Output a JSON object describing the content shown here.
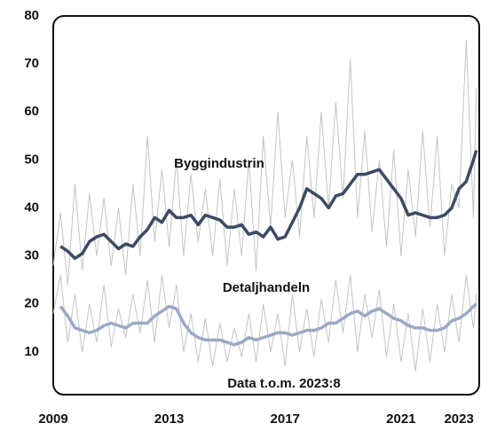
{
  "chart_data": {
    "type": "line",
    "annotation": "Data t.o.m. 2023:8",
    "x": [
      2009,
      2009.25,
      2009.5,
      2009.75,
      2010,
      2010.25,
      2010.5,
      2010.75,
      2011,
      2011.25,
      2011.5,
      2011.75,
      2012,
      2012.25,
      2012.5,
      2012.75,
      2013,
      2013.25,
      2013.5,
      2013.75,
      2014,
      2014.25,
      2014.5,
      2014.75,
      2015,
      2015.25,
      2015.5,
      2015.75,
      2016,
      2016.25,
      2016.5,
      2016.75,
      2017,
      2017.25,
      2017.5,
      2017.75,
      2018,
      2018.25,
      2018.5,
      2018.75,
      2019,
      2019.25,
      2019.5,
      2019.75,
      2020,
      2020.25,
      2020.5,
      2020.75,
      2021,
      2021.25,
      2021.5,
      2021.75,
      2022,
      2022.25,
      2022.5,
      2022.75,
      2023,
      2023.25,
      2023.5,
      2023.6
    ],
    "series": [
      {
        "color": "#c4c4c4",
        "values": [
          28,
          39,
          24,
          45,
          27,
          43,
          30,
          42,
          28,
          40,
          26,
          45,
          30,
          55,
          33,
          48,
          32,
          50,
          30,
          47,
          33,
          44,
          30,
          46,
          28,
          44,
          30,
          50,
          27,
          55,
          36,
          60,
          38,
          50,
          34,
          55,
          38,
          60,
          40,
          62,
          42,
          71,
          38,
          56,
          35,
          50,
          32,
          52,
          30,
          48,
          34,
          56,
          36,
          55,
          30,
          45,
          40,
          75,
          38,
          65
        ]
      },
      {
        "color": "#c4c4c4",
        "values": [
          18,
          26,
          12,
          22,
          10,
          20,
          12,
          24,
          11,
          19,
          13,
          22,
          14,
          25,
          12,
          26,
          15,
          24,
          10,
          18,
          8,
          17,
          7,
          16,
          8,
          15,
          9,
          18,
          8,
          20,
          10,
          18,
          7,
          22,
          10,
          19,
          9,
          21,
          12,
          25,
          14,
          26,
          10,
          22,
          13,
          23,
          9,
          20,
          8,
          18,
          6,
          19,
          8,
          20,
          10,
          22,
          12,
          26,
          15,
          22
        ]
      },
      {
        "name": "Byggindustrin",
        "color": "#3d4a63",
        "values": [
          null,
          32,
          31,
          29.5,
          30.5,
          33,
          34,
          34.5,
          33,
          31.5,
          32.5,
          32,
          34,
          35.5,
          38,
          37,
          39.5,
          38,
          38,
          38.5,
          36.5,
          38.5,
          38,
          37.5,
          36,
          36,
          36.5,
          34.5,
          35,
          34,
          36,
          33.5,
          34,
          37,
          40,
          44,
          43,
          42,
          40,
          42.5,
          43,
          45,
          47,
          47,
          47.5,
          48,
          46,
          44,
          42,
          38.5,
          39,
          38.5,
          38,
          38,
          38.5,
          40,
          44,
          45.5,
          50,
          52
        ]
      },
      {
        "name": "Detaljhandeln",
        "color": "#9aa9c4",
        "values": [
          null,
          19.5,
          17.5,
          15,
          14.5,
          14,
          14.5,
          15.5,
          16,
          15.5,
          15,
          16,
          16,
          16,
          17.5,
          18.5,
          19.5,
          19,
          16,
          14,
          13,
          12.5,
          12.5,
          12.5,
          12,
          11.5,
          12,
          13,
          12.5,
          13,
          13.5,
          14,
          14,
          13.5,
          14,
          14.5,
          14.5,
          15,
          16,
          16,
          17,
          18,
          18.5,
          17.5,
          18.5,
          19,
          18,
          17,
          16.5,
          15.5,
          15,
          15,
          14.5,
          14.5,
          15,
          16.5,
          17,
          18,
          19.5,
          20
        ]
      }
    ],
    "xlim": [
      2009,
      2023.7
    ],
    "xticks": [
      2009,
      2013,
      2017,
      2021,
      2023
    ],
    "ylim": [
      0,
      80
    ],
    "yticks": [
      10,
      20,
      30,
      40,
      50,
      60,
      70,
      80
    ],
    "grid": false
  }
}
